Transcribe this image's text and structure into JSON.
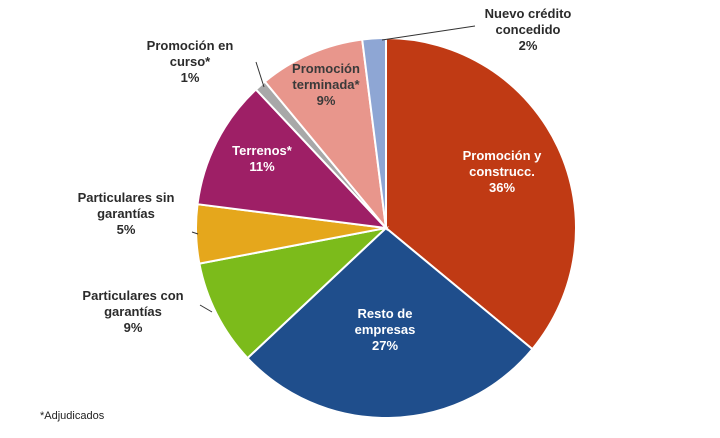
{
  "chart_data": {
    "type": "pie",
    "title": "",
    "slices": [
      {
        "label": [
          "Promoción y",
          "construcc."
        ],
        "pct_label": "36%",
        "value": 36,
        "color": "#C03A14"
      },
      {
        "label": [
          "Resto de",
          "empresas"
        ],
        "pct_label": "27%",
        "value": 27,
        "color": "#1F4E8C"
      },
      {
        "label": [
          "Particulares con",
          "garantías"
        ],
        "pct_label": "9%",
        "value": 9,
        "color": "#7CBB1B"
      },
      {
        "label": [
          "Particulares sin",
          "garantías"
        ],
        "pct_label": "5%",
        "value": 5,
        "color": "#E5A71C"
      },
      {
        "label": [
          "Terrenos*"
        ],
        "pct_label": "11%",
        "value": 11,
        "color": "#9E1F66"
      },
      {
        "label": [
          "Promoción en",
          "curso*"
        ],
        "pct_label": "1%",
        "value": 1,
        "color": "#A8A8A8"
      },
      {
        "label": [
          "Promoción",
          "terminada*"
        ],
        "pct_label": "9%",
        "value": 9,
        "color": "#E8968C"
      },
      {
        "label": [
          "Nuevo crédito",
          "concedido"
        ],
        "pct_label": "2%",
        "value": 2,
        "color": "#8EA6D4"
      }
    ],
    "footnote": "*Adjudicados"
  }
}
